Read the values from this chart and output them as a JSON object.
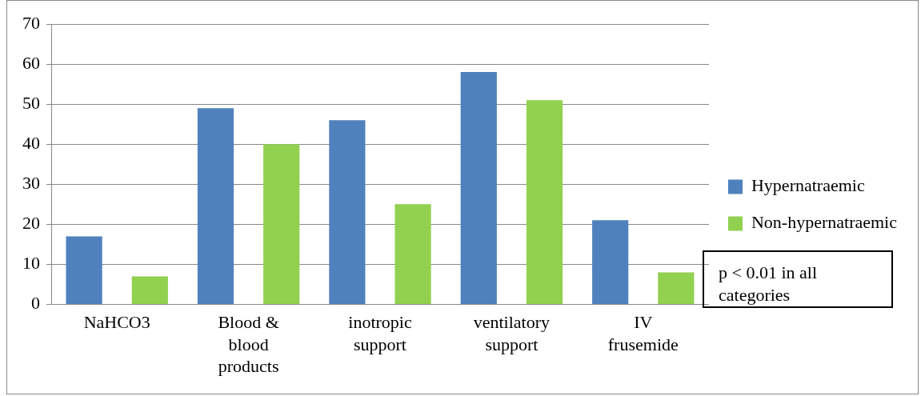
{
  "chart_data": {
    "type": "bar",
    "categories": [
      "NaHCO3",
      "Blood & blood products",
      "inotropic support",
      "ventilatory support",
      "IV frusemide"
    ],
    "series": [
      {
        "name": "Hypernatraemic",
        "color": "#4f81bd",
        "values": [
          17,
          49,
          46,
          58,
          21
        ]
      },
      {
        "name": "Non-hypernatraemic",
        "color": "#92d050",
        "values": [
          7,
          40,
          25,
          51,
          8
        ]
      }
    ],
    "ylim": [
      0,
      70
    ],
    "yticks": [
      0,
      10,
      20,
      30,
      40,
      50,
      60,
      70
    ],
    "grid": "y",
    "legend": "right",
    "annotations": [
      "p < 0.01 in all categories"
    ]
  }
}
